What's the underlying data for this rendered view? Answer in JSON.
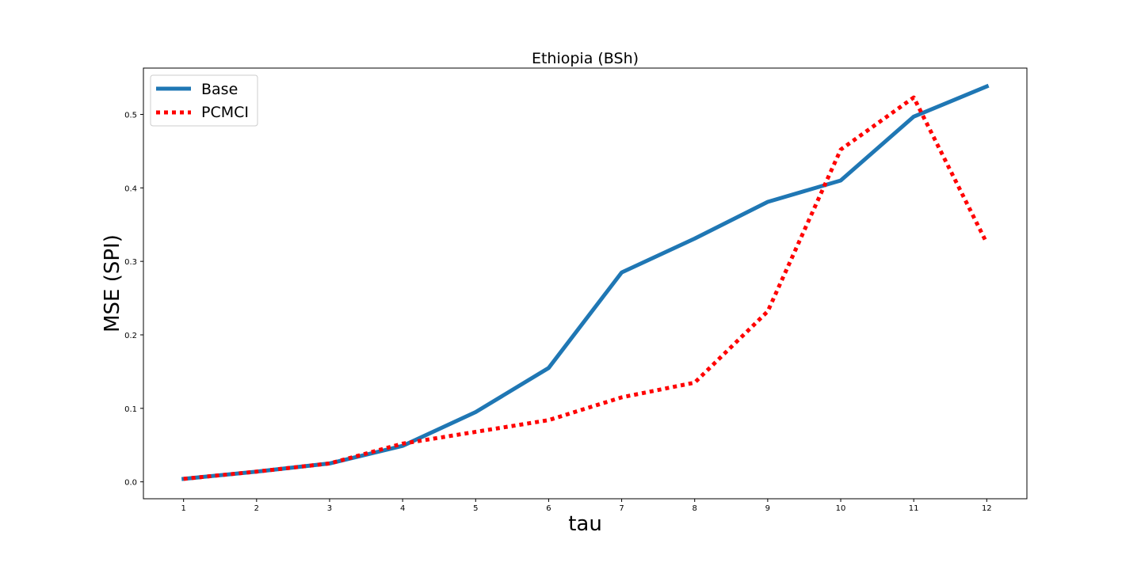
{
  "chart_data": {
    "type": "line",
    "title": "Ethiopia (BSh)",
    "xlabel": "tau",
    "ylabel": "MSE (SPI)",
    "x": [
      1,
      2,
      3,
      4,
      5,
      6,
      7,
      8,
      9,
      10,
      11,
      12
    ],
    "xticks": [
      "1",
      "2",
      "3",
      "4",
      "5",
      "6",
      "7",
      "8",
      "9",
      "10",
      "11",
      "12"
    ],
    "yticks": [
      "0.0",
      "0.1",
      "0.2",
      "0.3",
      "0.4",
      "0.5"
    ],
    "ytick_values": [
      0.0,
      0.1,
      0.2,
      0.3,
      0.4,
      0.5
    ],
    "xlim": [
      0.45,
      12.55
    ],
    "ylim": [
      -0.023,
      0.563
    ],
    "grid": false,
    "legend_position": "top-left",
    "series": [
      {
        "name": "Base",
        "color": "#1f77b4",
        "style": "solid",
        "values": [
          0.004,
          0.014,
          0.025,
          0.049,
          0.095,
          0.155,
          0.285,
          0.331,
          0.381,
          0.41,
          0.497,
          0.538
        ]
      },
      {
        "name": "PCMCI",
        "color": "#ff0000",
        "style": "dotted",
        "values": [
          0.004,
          0.014,
          0.025,
          0.052,
          0.068,
          0.084,
          0.115,
          0.135,
          0.232,
          0.452,
          0.523,
          0.325
        ]
      }
    ]
  }
}
